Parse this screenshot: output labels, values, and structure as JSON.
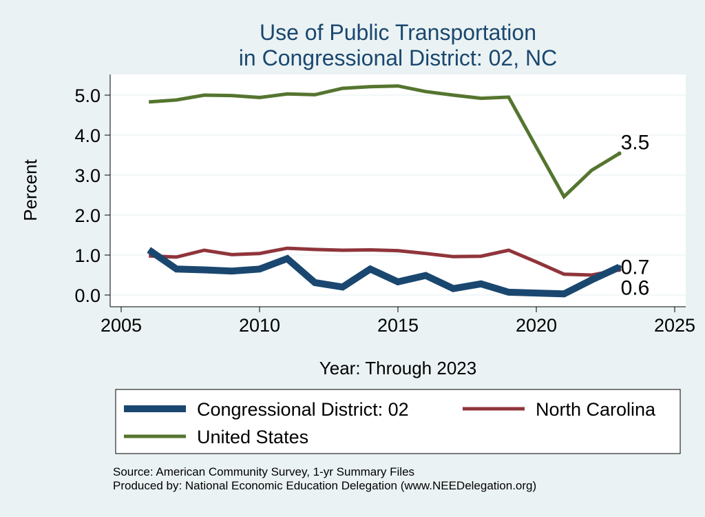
{
  "chart_data": {
    "type": "line",
    "title": "Use of Public Transportation",
    "subtitle": "in Congressional District: 02, NC",
    "xlabel": "Year: Through 2023",
    "ylabel": "Percent",
    "xlim": [
      2005,
      2025
    ],
    "ylim": [
      -0.2,
      5.5
    ],
    "x_ticks": [
      2005,
      2010,
      2015,
      2020,
      2025
    ],
    "y_ticks": [
      0.0,
      1.0,
      2.0,
      3.0,
      4.0,
      5.0
    ],
    "x_tick_labels": [
      "2005",
      "2010",
      "2015",
      "2020",
      "2025"
    ],
    "y_tick_labels": [
      "0.0",
      "1.0",
      "2.0",
      "3.0",
      "4.0",
      "5.0"
    ],
    "grid": "horizontal",
    "x": [
      2006,
      2007,
      2008,
      2009,
      2010,
      2011,
      2012,
      2013,
      2014,
      2015,
      2016,
      2017,
      2018,
      2019,
      2020,
      2021,
      2022,
      2023
    ],
    "series": [
      {
        "name": "Congressional District: 02",
        "color": "#1a476f",
        "values": [
          1.13,
          0.65,
          0.63,
          0.6,
          0.65,
          0.91,
          0.31,
          0.2,
          0.65,
          0.33,
          0.49,
          0.16,
          0.28,
          0.07,
          0.05,
          0.03,
          0.38,
          0.7
        ],
        "end_label": "0.7"
      },
      {
        "name": "North Carolina",
        "color": "#90353b",
        "values": [
          0.98,
          0.95,
          1.12,
          1.01,
          1.04,
          1.17,
          1.14,
          1.12,
          1.13,
          1.11,
          1.04,
          0.96,
          0.97,
          1.12,
          0.83,
          0.52,
          0.5,
          0.63
        ],
        "end_label": "0.6"
      },
      {
        "name": "United States",
        "color": "#55752f",
        "values": [
          4.83,
          4.88,
          5.0,
          4.99,
          4.94,
          5.03,
          5.01,
          5.17,
          5.21,
          5.23,
          5.09,
          5.0,
          4.92,
          4.95,
          3.7,
          2.46,
          3.12,
          3.54
        ],
        "end_label": "3.5"
      }
    ],
    "legend": {
      "placement": "bottom",
      "entries": [
        "Congressional District: 02",
        "North Carolina",
        "United States"
      ]
    },
    "source": "Source: American Community Survey, 1-yr Summary Files",
    "produced_by": "Produced by: National Economic Education Delegation (www.NEEDelegation.org)"
  }
}
